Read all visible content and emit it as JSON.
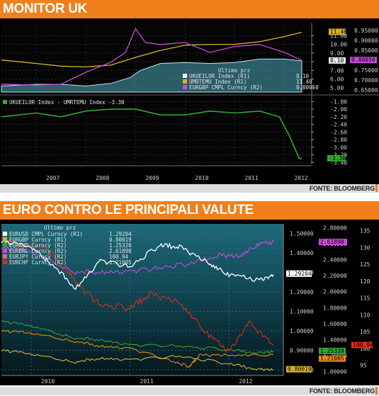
{
  "panel1": {
    "title": "MONITOR UK",
    "source": "FONTE: BLOOMBERG"
  },
  "panel2": {
    "title": "EURO CONTRO LE PRINCIPALI VALUTE",
    "source": "FONTE: BLOOMBERG"
  },
  "colors": {
    "accent": "#f07f1c",
    "white_series": "#ffffff",
    "yellow_series": "#d4b42a",
    "magenta_series": "#c84ad8",
    "green_series": "#2ea82e",
    "area_fill": "#4aa6b8",
    "orange_series": "#e8851a",
    "red_series": "#e02a1a",
    "pink_series": "#e07070"
  },
  "chart_data": [
    {
      "type": "line",
      "legend_title": "Ultimo prz",
      "legend_placement": "bottom-right",
      "x_ticks": [
        "2007",
        "2008",
        "2009",
        "2010",
        "2011",
        "2012"
      ],
      "y_left_ticks": [
        "11.00",
        "10.00",
        "9.00",
        "8.00",
        "7.00",
        "6.00",
        "5.00"
      ],
      "y_right_ticks": [
        "0.95000",
        "0.90000",
        "0.85000",
        "0.75000",
        "0.70000",
        "0.65000"
      ],
      "series": [
        {
          "name": "UKUEILOR Index (R1)",
          "last": "8.10",
          "axis": "left",
          "style": "area",
          "x": [
            2006.3,
            2007.0,
            2007.5,
            2008.0,
            2008.5,
            2008.9,
            2009.1,
            2009.5,
            2010.0,
            2010.5,
            2011.0,
            2011.5,
            2012.0,
            2012.35
          ],
          "values": [
            5.2,
            5.4,
            5.4,
            5.2,
            5.5,
            6.2,
            7.0,
            7.8,
            7.9,
            7.8,
            7.9,
            8.3,
            8.3,
            8.1
          ]
        },
        {
          "name": "UMRTEMU Index (R1)",
          "last": "11.40",
          "axis": "left",
          "x": [
            2006.3,
            2007.0,
            2007.5,
            2008.0,
            2008.5,
            2009.0,
            2009.5,
            2010.0,
            2010.5,
            2011.0,
            2011.5,
            2012.0,
            2012.35
          ],
          "values": [
            8.2,
            7.8,
            7.5,
            7.4,
            7.6,
            8.5,
            9.3,
            9.9,
            10.0,
            10.0,
            10.3,
            10.9,
            11.4
          ]
        },
        {
          "name": "EURGBP CMPL Curncy (R2)",
          "last": "0.80050",
          "axis": "right",
          "x": [
            2006.3,
            2007.0,
            2007.5,
            2008.0,
            2008.5,
            2008.8,
            2009.0,
            2009.2,
            2009.5,
            2010.0,
            2010.5,
            2011.0,
            2011.5,
            2012.0,
            2012.35
          ],
          "values": [
            0.68,
            0.675,
            0.68,
            0.74,
            0.79,
            0.84,
            0.96,
            0.89,
            0.88,
            0.89,
            0.84,
            0.87,
            0.88,
            0.84,
            0.8
          ]
        }
      ],
      "ylim_left": [
        4.5,
        12.5
      ],
      "ylim_right": [
        0.64,
        0.99
      ],
      "labels": [
        "11.40",
        "8.10",
        "0.80050"
      ]
    },
    {
      "type": "line",
      "legend_title": "UKUEILOR Index - UMRTEMU Index -3.30",
      "legend_placement": "top-left",
      "y_ticks": [
        "-1.80",
        "-2.00",
        "-2.20",
        "-2.40",
        "-2.60",
        "-2.80",
        "-3.00",
        "-3.20",
        "-3.40"
      ],
      "series": [
        {
          "name": "UKUEILOR Index - UMRTEMU Index",
          "last": "-3.30",
          "x": [
            2006.3,
            2007.0,
            2007.5,
            2008.0,
            2008.5,
            2009.0,
            2009.5,
            2010.0,
            2010.5,
            2011.0,
            2011.5,
            2011.9,
            2012.1,
            2012.3,
            2012.35
          ],
          "values": [
            -2.2,
            -2.1,
            -2.2,
            -2.05,
            -2.0,
            -2.0,
            -2.15,
            -2.15,
            -2.05,
            -2.1,
            -2.05,
            -2.2,
            -2.7,
            -3.3,
            -3.3
          ]
        }
      ],
      "ylim": [
        -3.45,
        -1.7
      ],
      "labels": [
        "-3.30"
      ]
    },
    {
      "type": "line",
      "legend_title": "Ultimo prz",
      "legend_placement": "top-left",
      "x_ticks": [
        "2010",
        "2011",
        "2012"
      ],
      "y_left_ticks": [
        "1.50000",
        "1.40000",
        "1.30000",
        "1.20000",
        "1.10000",
        "1.00000",
        "0.90000",
        "0.80000"
      ],
      "y_mid_ticks": [
        "2.80000",
        "2.60000",
        "2.40000",
        "2.20000",
        "2.00000",
        "1.80000",
        "1.60000",
        "1.40000",
        "1.20000",
        "1.00000"
      ],
      "y_right_ticks": [
        "135",
        "130",
        "125",
        "120",
        "115",
        "110",
        "105",
        "100",
        "95"
      ],
      "series": [
        {
          "name": "EURUSD CMPL Curncy (R1)",
          "last": "1.29204",
          "x": [
            2009.7,
            2010.0,
            2010.2,
            2010.45,
            2010.7,
            2011.0,
            2011.3,
            2011.5,
            2011.8,
            2012.0,
            2012.3,
            2012.45
          ],
          "values": [
            1.46,
            1.43,
            1.35,
            1.22,
            1.36,
            1.33,
            1.44,
            1.43,
            1.35,
            1.29,
            1.26,
            1.29
          ]
        },
        {
          "name": "EURGBP Curncy (R1)",
          "last": "0.80019",
          "x": [
            2009.7,
            2010.0,
            2010.45,
            2010.7,
            2011.0,
            2011.5,
            2012.0,
            2012.3,
            2012.45
          ],
          "values": [
            0.9,
            0.88,
            0.84,
            0.86,
            0.85,
            0.87,
            0.83,
            0.8,
            0.8
          ]
        },
        {
          "name": "EURAUD Curncy (R2)",
          "last": "1.25320",
          "x": [
            2009.7,
            2010.0,
            2010.45,
            2010.7,
            2011.0,
            2011.5,
            2012.0,
            2012.3,
            2012.45
          ],
          "values": [
            1.63,
            1.57,
            1.42,
            1.4,
            1.33,
            1.32,
            1.27,
            1.23,
            1.25
          ]
        },
        {
          "name": "EURBRL Curncy (R2)",
          "last": "2.61890",
          "x": [
            2009.7,
            2010.0,
            2010.45,
            2010.7,
            2011.0,
            2011.3,
            2011.6,
            2011.9,
            2012.1,
            2012.3,
            2012.45
          ],
          "values": [
            2.55,
            2.5,
            2.25,
            2.25,
            2.25,
            2.3,
            2.35,
            2.45,
            2.45,
            2.6,
            2.62
          ]
        },
        {
          "name": "EURJPY Curncy (R2)",
          "last": "100.94",
          "x": [
            2009.7,
            2009.9,
            2010.1,
            2010.35,
            2010.5,
            2010.7,
            2011.0,
            2011.2,
            2011.5,
            2011.8,
            2012.0,
            2012.2,
            2012.45
          ],
          "values": [
            133,
            130,
            131,
            124,
            118,
            113,
            112,
            116,
            114,
            104,
            99,
            108,
            100.94
          ]
        },
        {
          "name": "EURCHF Curncy (R2)",
          "last": "1.21005",
          "x": [
            2009.7,
            2010.0,
            2010.45,
            2010.7,
            2011.0,
            2011.45,
            2011.6,
            2011.7,
            2012.0,
            2012.45
          ],
          "values": [
            1.51,
            1.48,
            1.38,
            1.32,
            1.29,
            1.12,
            1.06,
            1.2,
            1.21,
            1.21
          ]
        }
      ],
      "ylim_left": [
        0.77,
        1.55
      ],
      "ylim_mid": [
        0.95,
        2.85
      ],
      "ylim_right": [
        92,
        137
      ],
      "labels": [
        "2.61890",
        "1.29204",
        "100.94",
        "1.25320",
        "1.21005",
        "0.80019"
      ]
    }
  ]
}
